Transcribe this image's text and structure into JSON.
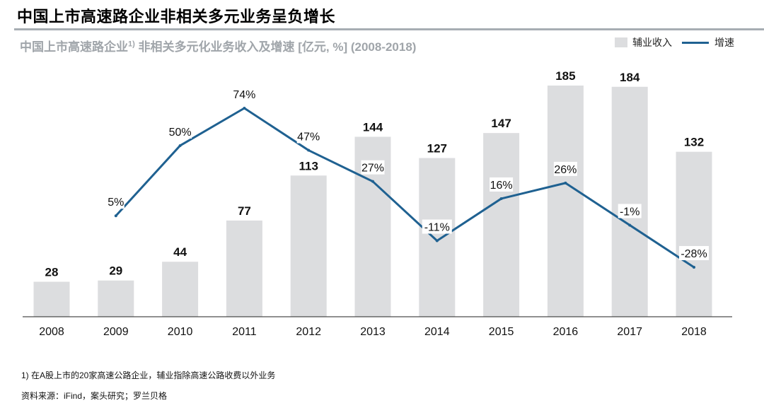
{
  "headline": "中国上市高速路企业非相关多元业务呈负增长",
  "subtitle_main": "中国上市高速路企业",
  "subtitle_sup": "1)",
  "subtitle_rest": " 非相关多元化业务收入及增速   [亿元, %] (2008-2018)",
  "legend": {
    "bar_label": "辅业收入",
    "line_label": "增速"
  },
  "colors": {
    "bar": "#dcdddf",
    "line": "#1f6191",
    "frame": "#a7adb3"
  },
  "chart_data": {
    "type": "bar",
    "categories": [
      "2008",
      "2009",
      "2010",
      "2011",
      "2012",
      "2013",
      "2014",
      "2015",
      "2016",
      "2017",
      "2018"
    ],
    "series": [
      {
        "name": "辅业收入",
        "type": "bar",
        "values": [
          28,
          29,
          44,
          77,
          113,
          144,
          127,
          147,
          185,
          184,
          132
        ],
        "labels": [
          "28",
          "29",
          "44",
          "77",
          "113",
          "144",
          "127",
          "147",
          "185",
          "184",
          "132"
        ]
      },
      {
        "name": "增速",
        "type": "line",
        "values": [
          null,
          5,
          50,
          74,
          47,
          27,
          -11,
          16,
          26,
          -1,
          -28
        ],
        "labels": [
          "",
          "5%",
          "50%",
          "74%",
          "47%",
          "27%",
          "-11%",
          "16%",
          "26%",
          "-1%",
          "-28%"
        ]
      }
    ],
    "bar_ylim": [
      0,
      185
    ],
    "line_ylim": [
      -28,
      74
    ]
  },
  "footnote": "1) 在A股上市的20家高速公路企业，辅业指除高速公路收费以外业务",
  "source": "资料来源：iFind，案头研究；罗兰贝格"
}
